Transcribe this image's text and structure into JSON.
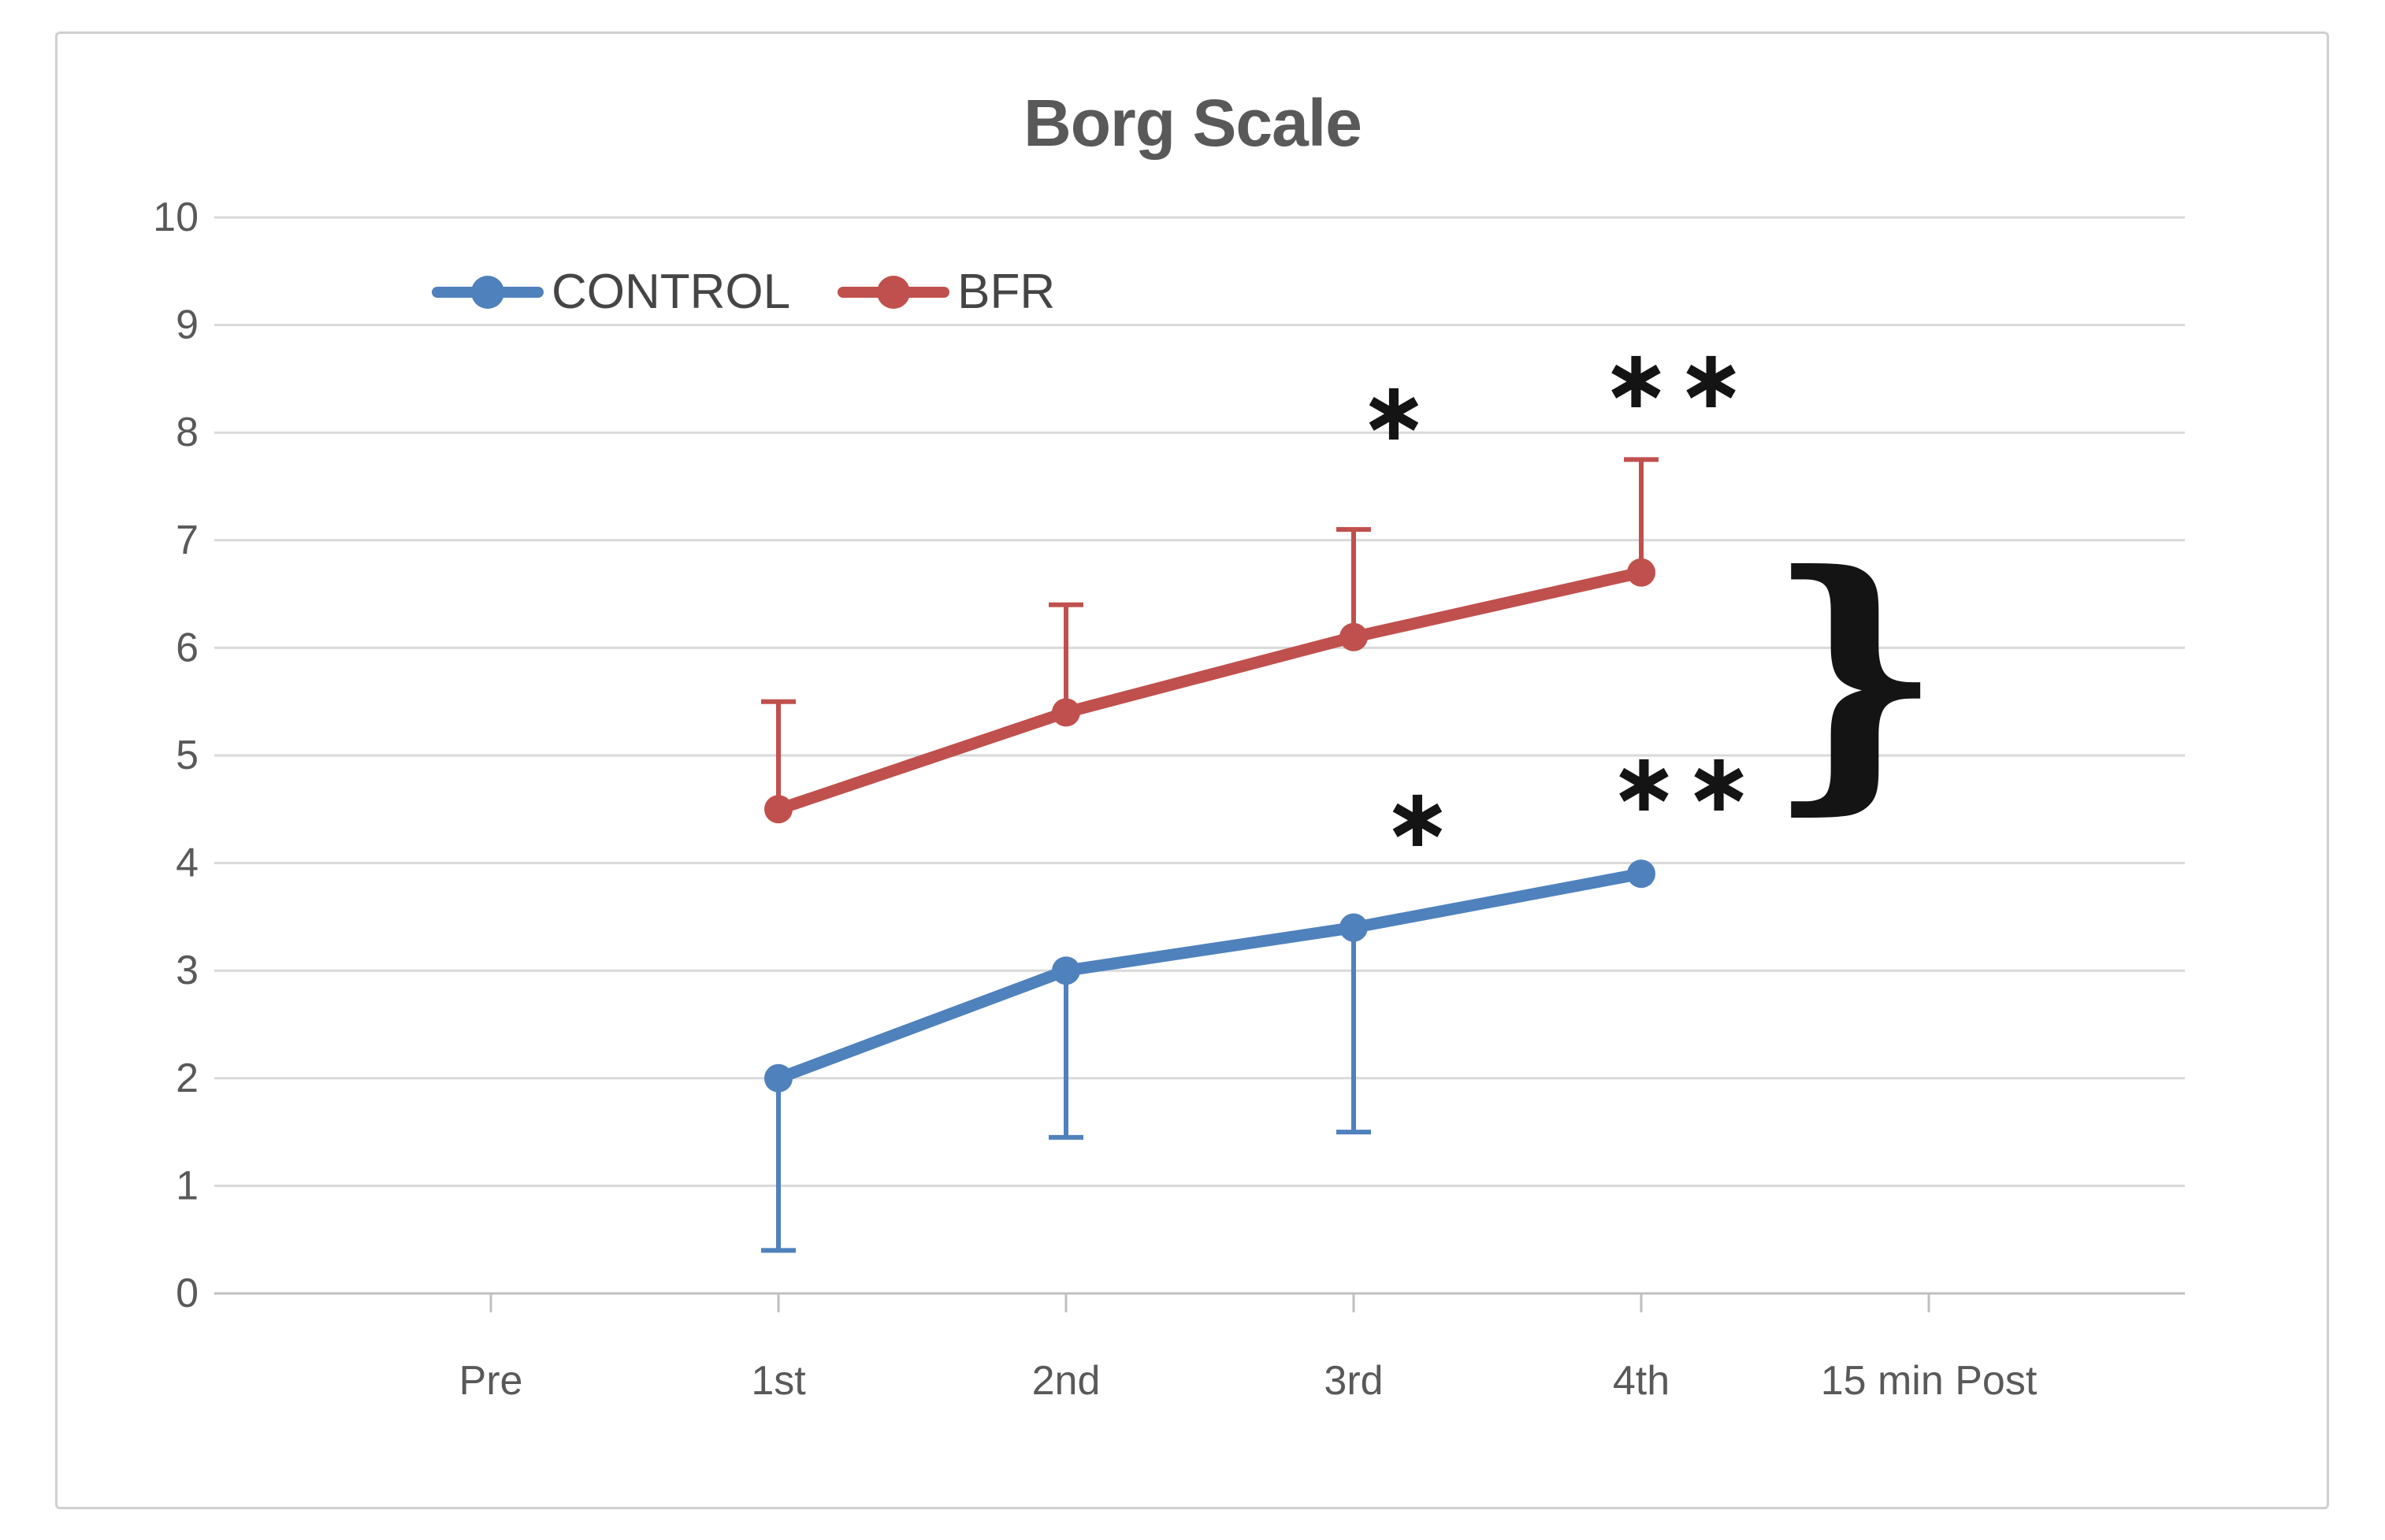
{
  "figure": {
    "background_color": "#ffffff",
    "border_color": "#cfcfcf"
  },
  "chart_data": {
    "type": "line",
    "title": "Borg Scale",
    "xlabel": "",
    "ylabel": "",
    "categories": [
      "Pre",
      "1st",
      "2nd",
      "3rd",
      "4th",
      "15 min Post"
    ],
    "ylim": [
      0,
      10
    ],
    "ytick_step": 1,
    "ytick_labels": [
      "0",
      "1",
      "2",
      "3",
      "4",
      "5",
      "6",
      "7",
      "8",
      "9",
      "10"
    ],
    "grid": true,
    "legend_position": "top-left-inside",
    "series": [
      {
        "name": "CONTROL",
        "color": "#4f81bd",
        "marker": "circle",
        "values": [
          null,
          2.0,
          3.0,
          3.4,
          3.9,
          null
        ],
        "error_low": [
          null,
          0.4,
          1.45,
          1.5,
          null,
          null
        ],
        "error_high": [
          null,
          null,
          null,
          null,
          null,
          null
        ],
        "error_direction": "down"
      },
      {
        "name": "BFR",
        "color": "#c0504d",
        "marker": "circle",
        "values": [
          null,
          4.5,
          5.4,
          6.1,
          6.7,
          null
        ],
        "error_low": [
          null,
          null,
          null,
          null,
          null,
          null
        ],
        "error_high": [
          null,
          5.5,
          6.4,
          7.1,
          7.75,
          null
        ],
        "error_direction": "up"
      }
    ],
    "annotations": {
      "asterisks": [
        {
          "symbol": "*",
          "series": "BFR",
          "category_index": 3,
          "dx": 55,
          "y": 8.2
        },
        {
          "symbol": "**",
          "series": "BFR",
          "category_index": 4,
          "dx": 45,
          "y": 8.5
        },
        {
          "symbol": "*",
          "series": "CONTROL",
          "category_index": 3,
          "dx": 85,
          "y": 4.42
        },
        {
          "symbol": "**",
          "series": "CONTROL",
          "category_index": 4,
          "dx": 55,
          "y": 4.75
        }
      ],
      "brace": {
        "symbol": "}",
        "y_top": 6.71,
        "y_bottom": 4.77
      }
    },
    "text_color": "#595959",
    "grid_color": "#d9d9d9",
    "axis_color": "#bfbfbf",
    "annotation_color": "#141414"
  }
}
